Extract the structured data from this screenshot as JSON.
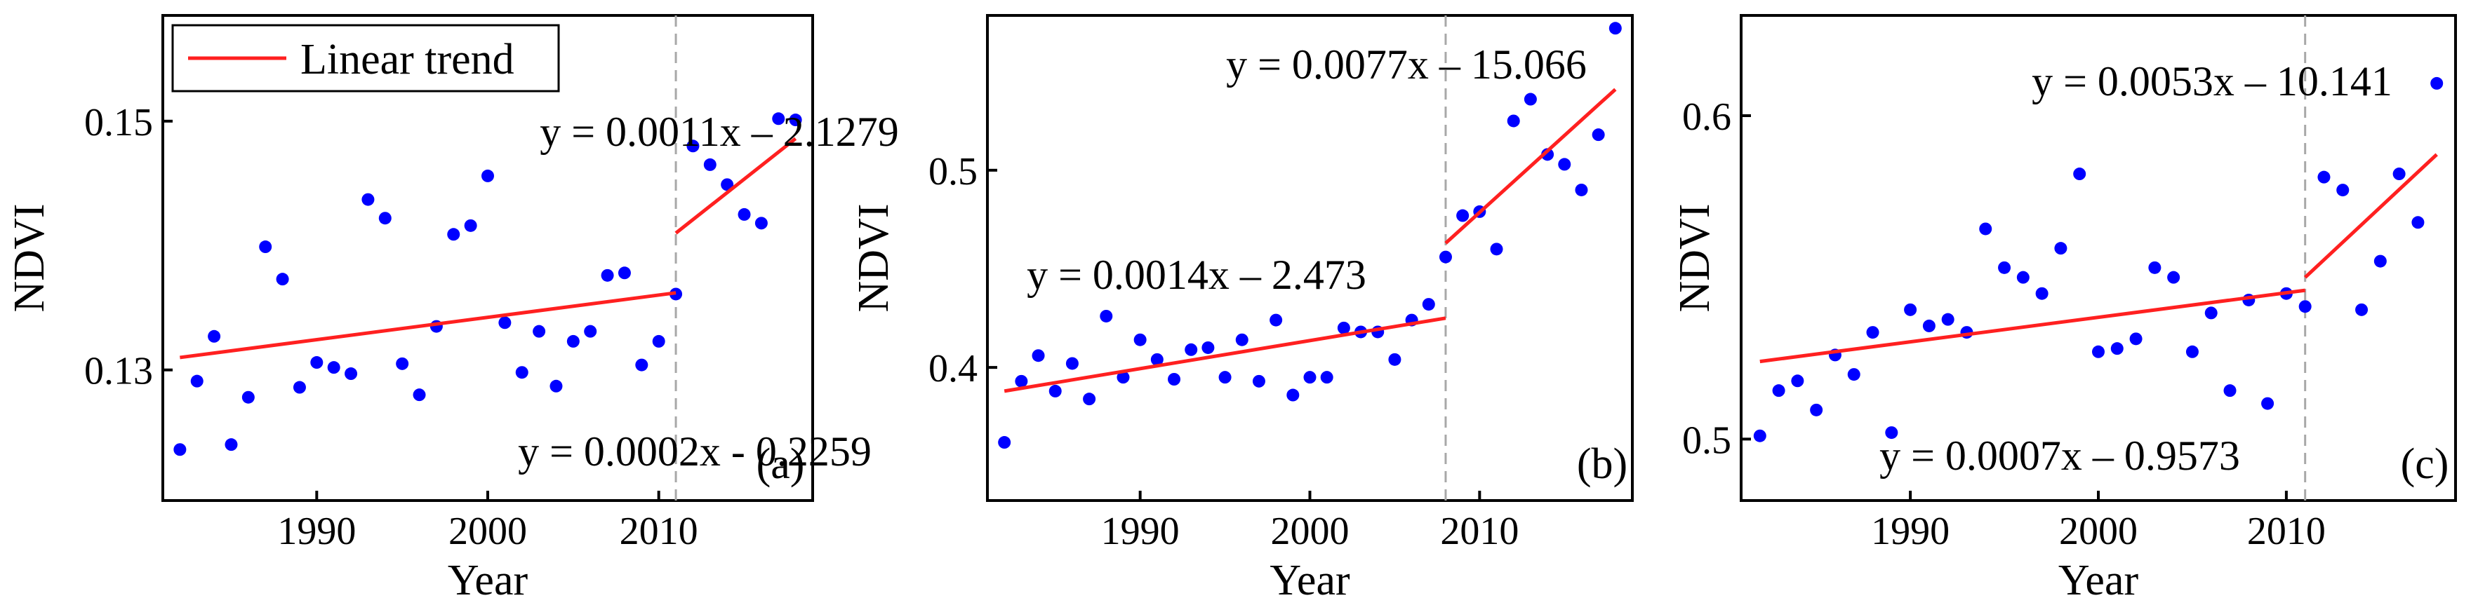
{
  "figure": {
    "legend_label": "Linear trend"
  },
  "colors": {
    "points": "#0000ff",
    "trend": "#ff2020",
    "breakpoint": "#a8a8a8",
    "axes": "#000000"
  },
  "chart_data": [
    {
      "type": "scatter",
      "panel_label": "(a)",
      "xlabel": "Year",
      "ylabel": "NDVI",
      "xlim": [
        1981,
        2019
      ],
      "ylim": [
        0.1195,
        0.1585
      ],
      "xticks": [
        1990,
        2000,
        2010
      ],
      "yticks": [
        0.13,
        0.15
      ],
      "ytick_labels": [
        "0.13",
        "0.15"
      ],
      "breakpoint": 2011,
      "legend": {
        "label": "Linear trend",
        "position": "top-left"
      },
      "x": [
        1982,
        1983,
        1984,
        1985,
        1986,
        1987,
        1988,
        1989,
        1990,
        1991,
        1992,
        1993,
        1994,
        1995,
        1996,
        1997,
        1998,
        1999,
        2000,
        2001,
        2002,
        2003,
        2004,
        2005,
        2006,
        2007,
        2008,
        2009,
        2010,
        2011,
        2012,
        2013,
        2014,
        2015,
        2016,
        2017,
        2018
      ],
      "y": [
        0.1236,
        0.1291,
        0.1327,
        0.124,
        0.1278,
        0.1399,
        0.1373,
        0.1286,
        0.1306,
        0.1302,
        0.1297,
        0.1437,
        0.1422,
        0.1305,
        0.128,
        0.1335,
        0.1409,
        0.1416,
        0.1456,
        0.1338,
        0.1298,
        0.1331,
        0.1287,
        0.1323,
        0.1331,
        0.1376,
        0.1378,
        0.1304,
        0.1323,
        0.1361,
        0.148,
        0.1465,
        0.1449,
        0.1425,
        0.1418,
        0.1502,
        0.1501
      ],
      "trends": [
        {
          "segment": "before",
          "x": [
            1982,
            2011
          ],
          "y": [
            0.131,
            0.1362
          ],
          "equation": "y = 0.0002x - 0.2259"
        },
        {
          "segment": "after",
          "x": [
            2011,
            2018
          ],
          "y": [
            0.141,
            0.1486
          ],
          "equation": "y = 0.0011x – 2.1279"
        }
      ]
    },
    {
      "type": "scatter",
      "panel_label": "(b)",
      "xlabel": "Year",
      "ylabel": "NDVI",
      "xlim": [
        1981,
        2019
      ],
      "ylim": [
        0.3325,
        0.5785
      ],
      "xticks": [
        1990,
        2000,
        2010
      ],
      "yticks": [
        0.4,
        0.5
      ],
      "ytick_labels": [
        "0.4",
        "0.5"
      ],
      "breakpoint": 2008,
      "x": [
        1982,
        1983,
        1984,
        1985,
        1986,
        1987,
        1988,
        1989,
        1990,
        1991,
        1992,
        1993,
        1994,
        1995,
        1996,
        1997,
        1998,
        1999,
        2000,
        2001,
        2002,
        2003,
        2004,
        2005,
        2006,
        2007,
        2008,
        2009,
        2010,
        2011,
        2012,
        2013,
        2014,
        2015,
        2016,
        2017,
        2018
      ],
      "y": [
        0.362,
        0.393,
        0.406,
        0.388,
        0.402,
        0.384,
        0.426,
        0.395,
        0.414,
        0.404,
        0.394,
        0.409,
        0.41,
        0.395,
        0.414,
        0.393,
        0.424,
        0.386,
        0.395,
        0.395,
        0.42,
        0.418,
        0.418,
        0.404,
        0.424,
        0.432,
        0.456,
        0.477,
        0.479,
        0.46,
        0.525,
        0.536,
        0.508,
        0.503,
        0.49,
        0.518,
        0.572
      ],
      "trends": [
        {
          "segment": "before",
          "x": [
            1982,
            2008
          ],
          "y": [
            0.388,
            0.425
          ],
          "equation": "y = 0.0014x – 2.473"
        },
        {
          "segment": "after",
          "x": [
            2008,
            2018
          ],
          "y": [
            0.463,
            0.541
          ],
          "equation": "y = 0.0077x – 15.066"
        }
      ]
    },
    {
      "type": "scatter",
      "panel_label": "(c)",
      "xlabel": "Year",
      "ylabel": "NDVI",
      "xlim": [
        1981,
        2019
      ],
      "ylim": [
        0.481,
        0.631
      ],
      "xticks": [
        1990,
        2000,
        2010
      ],
      "yticks": [
        0.5,
        0.6
      ],
      "ytick_labels": [
        "0.5",
        "0.6"
      ],
      "breakpoint": 2011,
      "x": [
        1982,
        1983,
        1984,
        1985,
        1986,
        1987,
        1988,
        1989,
        1990,
        1991,
        1992,
        1993,
        1994,
        1995,
        1996,
        1997,
        1998,
        1999,
        2000,
        2001,
        2002,
        2003,
        2004,
        2005,
        2006,
        2007,
        2008,
        2009,
        2010,
        2011,
        2012,
        2013,
        2014,
        2015,
        2016,
        2017,
        2018
      ],
      "y": [
        0.501,
        0.515,
        0.518,
        0.509,
        0.526,
        0.52,
        0.533,
        0.502,
        0.54,
        0.535,
        0.537,
        0.533,
        0.565,
        0.553,
        0.55,
        0.545,
        0.559,
        0.582,
        0.527,
        0.528,
        0.531,
        0.553,
        0.55,
        0.527,
        0.539,
        0.515,
        0.543,
        0.511,
        0.545,
        0.541,
        0.581,
        0.577,
        0.54,
        0.555,
        0.582,
        0.567,
        0.61
      ],
      "trends": [
        {
          "segment": "before",
          "x": [
            1982,
            2011
          ],
          "y": [
            0.524,
            0.546
          ],
          "equation": "y = 0.0007x – 0.9573"
        },
        {
          "segment": "after",
          "x": [
            2011,
            2018
          ],
          "y": [
            0.55,
            0.588
          ],
          "equation": "y = 0.0053x – 10.141"
        }
      ]
    }
  ]
}
